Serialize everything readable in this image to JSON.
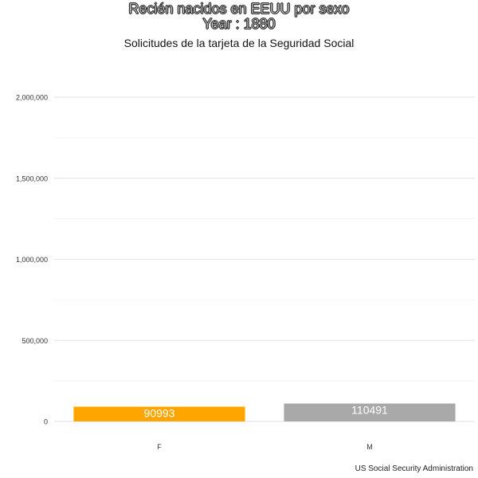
{
  "chart_data": {
    "type": "bar",
    "title_lines": [
      "Recién nacidos en EEUU por sexo",
      "Year : 1880"
    ],
    "subtitle": "Solicitudes de la tarjeta de la Seguridad Social",
    "caption": "US Social Security Administration",
    "categories": [
      "F",
      "M"
    ],
    "values": [
      90993,
      110491
    ],
    "data_labels": [
      "90993",
      "110491"
    ],
    "colors": [
      "#FFA500",
      "#A9A9A9"
    ],
    "ylim": [
      0,
      2200000
    ],
    "yticks": [
      0,
      500000,
      1000000,
      1500000,
      2000000
    ],
    "ytick_labels": [
      "0",
      "500,000",
      "1,000,000",
      "1,500,000",
      "2,000,000"
    ],
    "xlabel": "",
    "ylabel": "",
    "grid": true,
    "legend": "none"
  }
}
